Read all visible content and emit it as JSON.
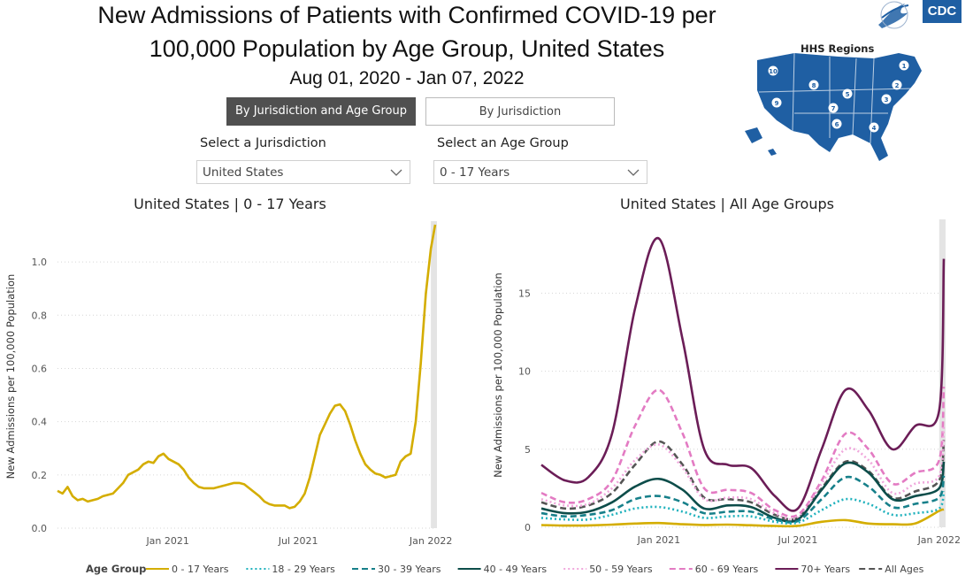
{
  "header": {
    "title_line1": "New Admissions of Patients with Confirmed COVID-19 per",
    "title_line2": "100,000 Population by Age Group, United States",
    "date_range": "Aug 01, 2020 - Jan 07, 2022"
  },
  "logos": {
    "cdc": "CDC",
    "hhs_icon": "hhs-eagle-icon"
  },
  "map": {
    "title": "HHS Regions",
    "region_numbers": [
      "1",
      "2",
      "3",
      "4",
      "5",
      "6",
      "7",
      "8",
      "9",
      "10"
    ],
    "fill": "#1f5fa3"
  },
  "tabs": [
    {
      "label": "By Jurisdiction and Age Group",
      "active": true
    },
    {
      "label": "By Jurisdiction",
      "active": false
    }
  ],
  "filters": {
    "jurisdiction": {
      "label": "Select a Jurisdiction",
      "value": "United States"
    },
    "age_group": {
      "label": "Select an Age Group",
      "value": "0 - 17 Years"
    }
  },
  "legend": {
    "title": "Age Group",
    "items": [
      {
        "name": "0 - 17 Years",
        "color": "#d4ad00",
        "dash": "solid"
      },
      {
        "name": "18 - 29 Years",
        "color": "#20b2bd",
        "dash": "dotted"
      },
      {
        "name": "30 - 39 Years",
        "color": "#17808a",
        "dash": "dashed"
      },
      {
        "name": "40 - 49 Years",
        "color": "#0d4d4a",
        "dash": "solid"
      },
      {
        "name": "50 - 59 Years",
        "color": "#f0a8dc",
        "dash": "dotted"
      },
      {
        "name": "60 - 69 Years",
        "color": "#e37bc3",
        "dash": "dashed"
      },
      {
        "name": "70+ Years",
        "color": "#6b1d57",
        "dash": "solid"
      },
      {
        "name": "All Ages",
        "color": "#555555",
        "dash": "dashed"
      }
    ]
  },
  "chart_data": [
    {
      "type": "line",
      "title": "United States | 0 - 17 Years",
      "xlabel": "",
      "ylabel": "New Admissions per 100,000 Population",
      "x_ticks": [
        "Jan 2021",
        "Jul 2021",
        "Jan 2022"
      ],
      "y_ticks": [
        "0.0",
        "0.2",
        "0.4",
        "0.6",
        "0.8",
        "1.0"
      ],
      "ylim": [
        0,
        1.14
      ],
      "xlim": [
        "2020-08-01",
        "2022-01-07"
      ],
      "grid": true,
      "series": [
        {
          "name": "0 - 17 Years",
          "color": "#d4ad00",
          "points": [
            [
              "2020-08-01",
              0.14
            ],
            [
              "2020-08-08",
              0.13
            ],
            [
              "2020-08-15",
              0.155
            ],
            [
              "2020-08-22",
              0.12
            ],
            [
              "2020-08-29",
              0.105
            ],
            [
              "2020-09-05",
              0.11
            ],
            [
              "2020-09-12",
              0.1
            ],
            [
              "2020-09-19",
              0.105
            ],
            [
              "2020-09-26",
              0.11
            ],
            [
              "2020-10-03",
              0.12
            ],
            [
              "2020-10-10",
              0.125
            ],
            [
              "2020-10-17",
              0.13
            ],
            [
              "2020-10-24",
              0.15
            ],
            [
              "2020-10-31",
              0.17
            ],
            [
              "2020-11-07",
              0.2
            ],
            [
              "2020-11-14",
              0.21
            ],
            [
              "2020-11-21",
              0.22
            ],
            [
              "2020-11-28",
              0.24
            ],
            [
              "2020-12-05",
              0.25
            ],
            [
              "2020-12-12",
              0.245
            ],
            [
              "2020-12-19",
              0.27
            ],
            [
              "2020-12-26",
              0.28
            ],
            [
              "2021-01-02",
              0.26
            ],
            [
              "2021-01-09",
              0.25
            ],
            [
              "2021-01-16",
              0.24
            ],
            [
              "2021-01-23",
              0.22
            ],
            [
              "2021-01-30",
              0.19
            ],
            [
              "2021-02-06",
              0.17
            ],
            [
              "2021-02-13",
              0.155
            ],
            [
              "2021-02-20",
              0.15
            ],
            [
              "2021-02-27",
              0.15
            ],
            [
              "2021-03-06",
              0.15
            ],
            [
              "2021-03-13",
              0.155
            ],
            [
              "2021-03-20",
              0.16
            ],
            [
              "2021-03-27",
              0.165
            ],
            [
              "2021-04-03",
              0.17
            ],
            [
              "2021-04-10",
              0.17
            ],
            [
              "2021-04-17",
              0.165
            ],
            [
              "2021-04-24",
              0.15
            ],
            [
              "2021-05-01",
              0.135
            ],
            [
              "2021-05-08",
              0.12
            ],
            [
              "2021-05-15",
              0.1
            ],
            [
              "2021-05-22",
              0.09
            ],
            [
              "2021-05-29",
              0.085
            ],
            [
              "2021-06-05",
              0.085
            ],
            [
              "2021-06-12",
              0.085
            ],
            [
              "2021-06-19",
              0.075
            ],
            [
              "2021-06-26",
              0.08
            ],
            [
              "2021-07-03",
              0.1
            ],
            [
              "2021-07-10",
              0.13
            ],
            [
              "2021-07-17",
              0.19
            ],
            [
              "2021-07-24",
              0.27
            ],
            [
              "2021-07-31",
              0.35
            ],
            [
              "2021-08-07",
              0.39
            ],
            [
              "2021-08-14",
              0.43
            ],
            [
              "2021-08-21",
              0.46
            ],
            [
              "2021-08-28",
              0.465
            ],
            [
              "2021-09-04",
              0.44
            ],
            [
              "2021-09-11",
              0.39
            ],
            [
              "2021-09-18",
              0.33
            ],
            [
              "2021-09-25",
              0.28
            ],
            [
              "2021-10-02",
              0.24
            ],
            [
              "2021-10-09",
              0.22
            ],
            [
              "2021-10-16",
              0.205
            ],
            [
              "2021-10-23",
              0.2
            ],
            [
              "2021-10-30",
              0.19
            ],
            [
              "2021-11-06",
              0.195
            ],
            [
              "2021-11-13",
              0.2
            ],
            [
              "2021-11-20",
              0.25
            ],
            [
              "2021-11-27",
              0.27
            ],
            [
              "2021-12-04",
              0.28
            ],
            [
              "2021-12-11",
              0.4
            ],
            [
              "2021-12-18",
              0.62
            ],
            [
              "2021-12-25",
              0.88
            ],
            [
              "2022-01-01",
              1.05
            ],
            [
              "2022-01-07",
              1.14
            ]
          ]
        }
      ]
    },
    {
      "type": "line",
      "title": "United States | All Age Groups",
      "xlabel": "",
      "ylabel": "New Admissions per 100,000 Population",
      "x_ticks": [
        "Jan 2021",
        "Jul 2021",
        "Jan 2022"
      ],
      "y_ticks": [
        "0",
        "5",
        "10",
        "15"
      ],
      "ylim": [
        0,
        19.5
      ],
      "xlim": [
        "2020-08-01",
        "2022-01-07"
      ],
      "grid": true,
      "dates": [
        "2020-08-01",
        "2020-09-01",
        "2020-10-01",
        "2020-11-01",
        "2020-12-01",
        "2021-01-01",
        "2021-02-01",
        "2021-03-01",
        "2021-04-01",
        "2021-05-01",
        "2021-06-01",
        "2021-07-01",
        "2021-08-01",
        "2021-09-01",
        "2021-10-01",
        "2021-11-01",
        "2021-12-01",
        "2022-01-01",
        "2022-01-07"
      ],
      "series": [
        {
          "name": "70+ Years",
          "color": "#6b1d57",
          "dash": "solid",
          "values": [
            4.0,
            3.0,
            3.2,
            6.0,
            14.0,
            18.5,
            12.0,
            5.0,
            4.0,
            3.8,
            2.0,
            1.2,
            5.0,
            8.8,
            7.5,
            5.0,
            6.5,
            7.5,
            17.2
          ]
        },
        {
          "name": "60 - 69 Years",
          "color": "#e37bc3",
          "dash": "dashed",
          "values": [
            2.2,
            1.6,
            1.8,
            3.0,
            6.5,
            8.8,
            6.0,
            2.5,
            2.4,
            2.2,
            1.1,
            0.8,
            3.0,
            6.0,
            5.0,
            2.8,
            3.5,
            4.3,
            9.0
          ]
        },
        {
          "name": "All Ages",
          "color": "#555555",
          "dash": "dashed",
          "values": [
            1.6,
            1.2,
            1.4,
            2.2,
            4.0,
            5.5,
            4.0,
            1.9,
            1.8,
            1.6,
            0.8,
            0.6,
            2.5,
            4.2,
            3.6,
            1.9,
            2.3,
            3.0,
            5.6
          ]
        },
        {
          "name": "50 - 59 Years",
          "color": "#f0a8dc",
          "dash": "dotted",
          "values": [
            1.8,
            1.4,
            1.5,
            2.5,
            4.3,
            5.3,
            3.8,
            1.8,
            1.9,
            1.8,
            0.9,
            0.6,
            2.8,
            5.0,
            4.3,
            2.2,
            2.8,
            3.3,
            6.5
          ]
        },
        {
          "name": "40 - 49 Years",
          "color": "#0d4d4a",
          "dash": "solid",
          "values": [
            1.2,
            0.9,
            1.0,
            1.6,
            2.6,
            3.1,
            2.4,
            1.2,
            1.4,
            1.3,
            0.6,
            0.5,
            2.4,
            4.1,
            3.5,
            1.8,
            2.0,
            2.5,
            4.2
          ]
        },
        {
          "name": "30 - 39 Years",
          "color": "#17808a",
          "dash": "dashed",
          "values": [
            0.9,
            0.7,
            0.8,
            1.1,
            1.8,
            2.0,
            1.6,
            0.9,
            1.0,
            1.0,
            0.5,
            0.4,
            1.8,
            3.2,
            2.6,
            1.3,
            1.5,
            1.9,
            3.3
          ]
        },
        {
          "name": "18 - 29 Years",
          "color": "#20b2bd",
          "dash": "dotted",
          "values": [
            0.6,
            0.5,
            0.5,
            0.8,
            1.2,
            1.3,
            1.0,
            0.6,
            0.7,
            0.7,
            0.35,
            0.3,
            1.1,
            1.8,
            1.5,
            0.8,
            0.9,
            1.2,
            2.3
          ]
        },
        {
          "name": "0 - 17 Years",
          "color": "#d4ad00",
          "dash": "solid",
          "values": [
            0.14,
            0.11,
            0.12,
            0.17,
            0.24,
            0.27,
            0.19,
            0.15,
            0.17,
            0.13,
            0.085,
            0.09,
            0.35,
            0.46,
            0.24,
            0.195,
            0.25,
            1.05,
            1.14
          ]
        }
      ]
    }
  ]
}
